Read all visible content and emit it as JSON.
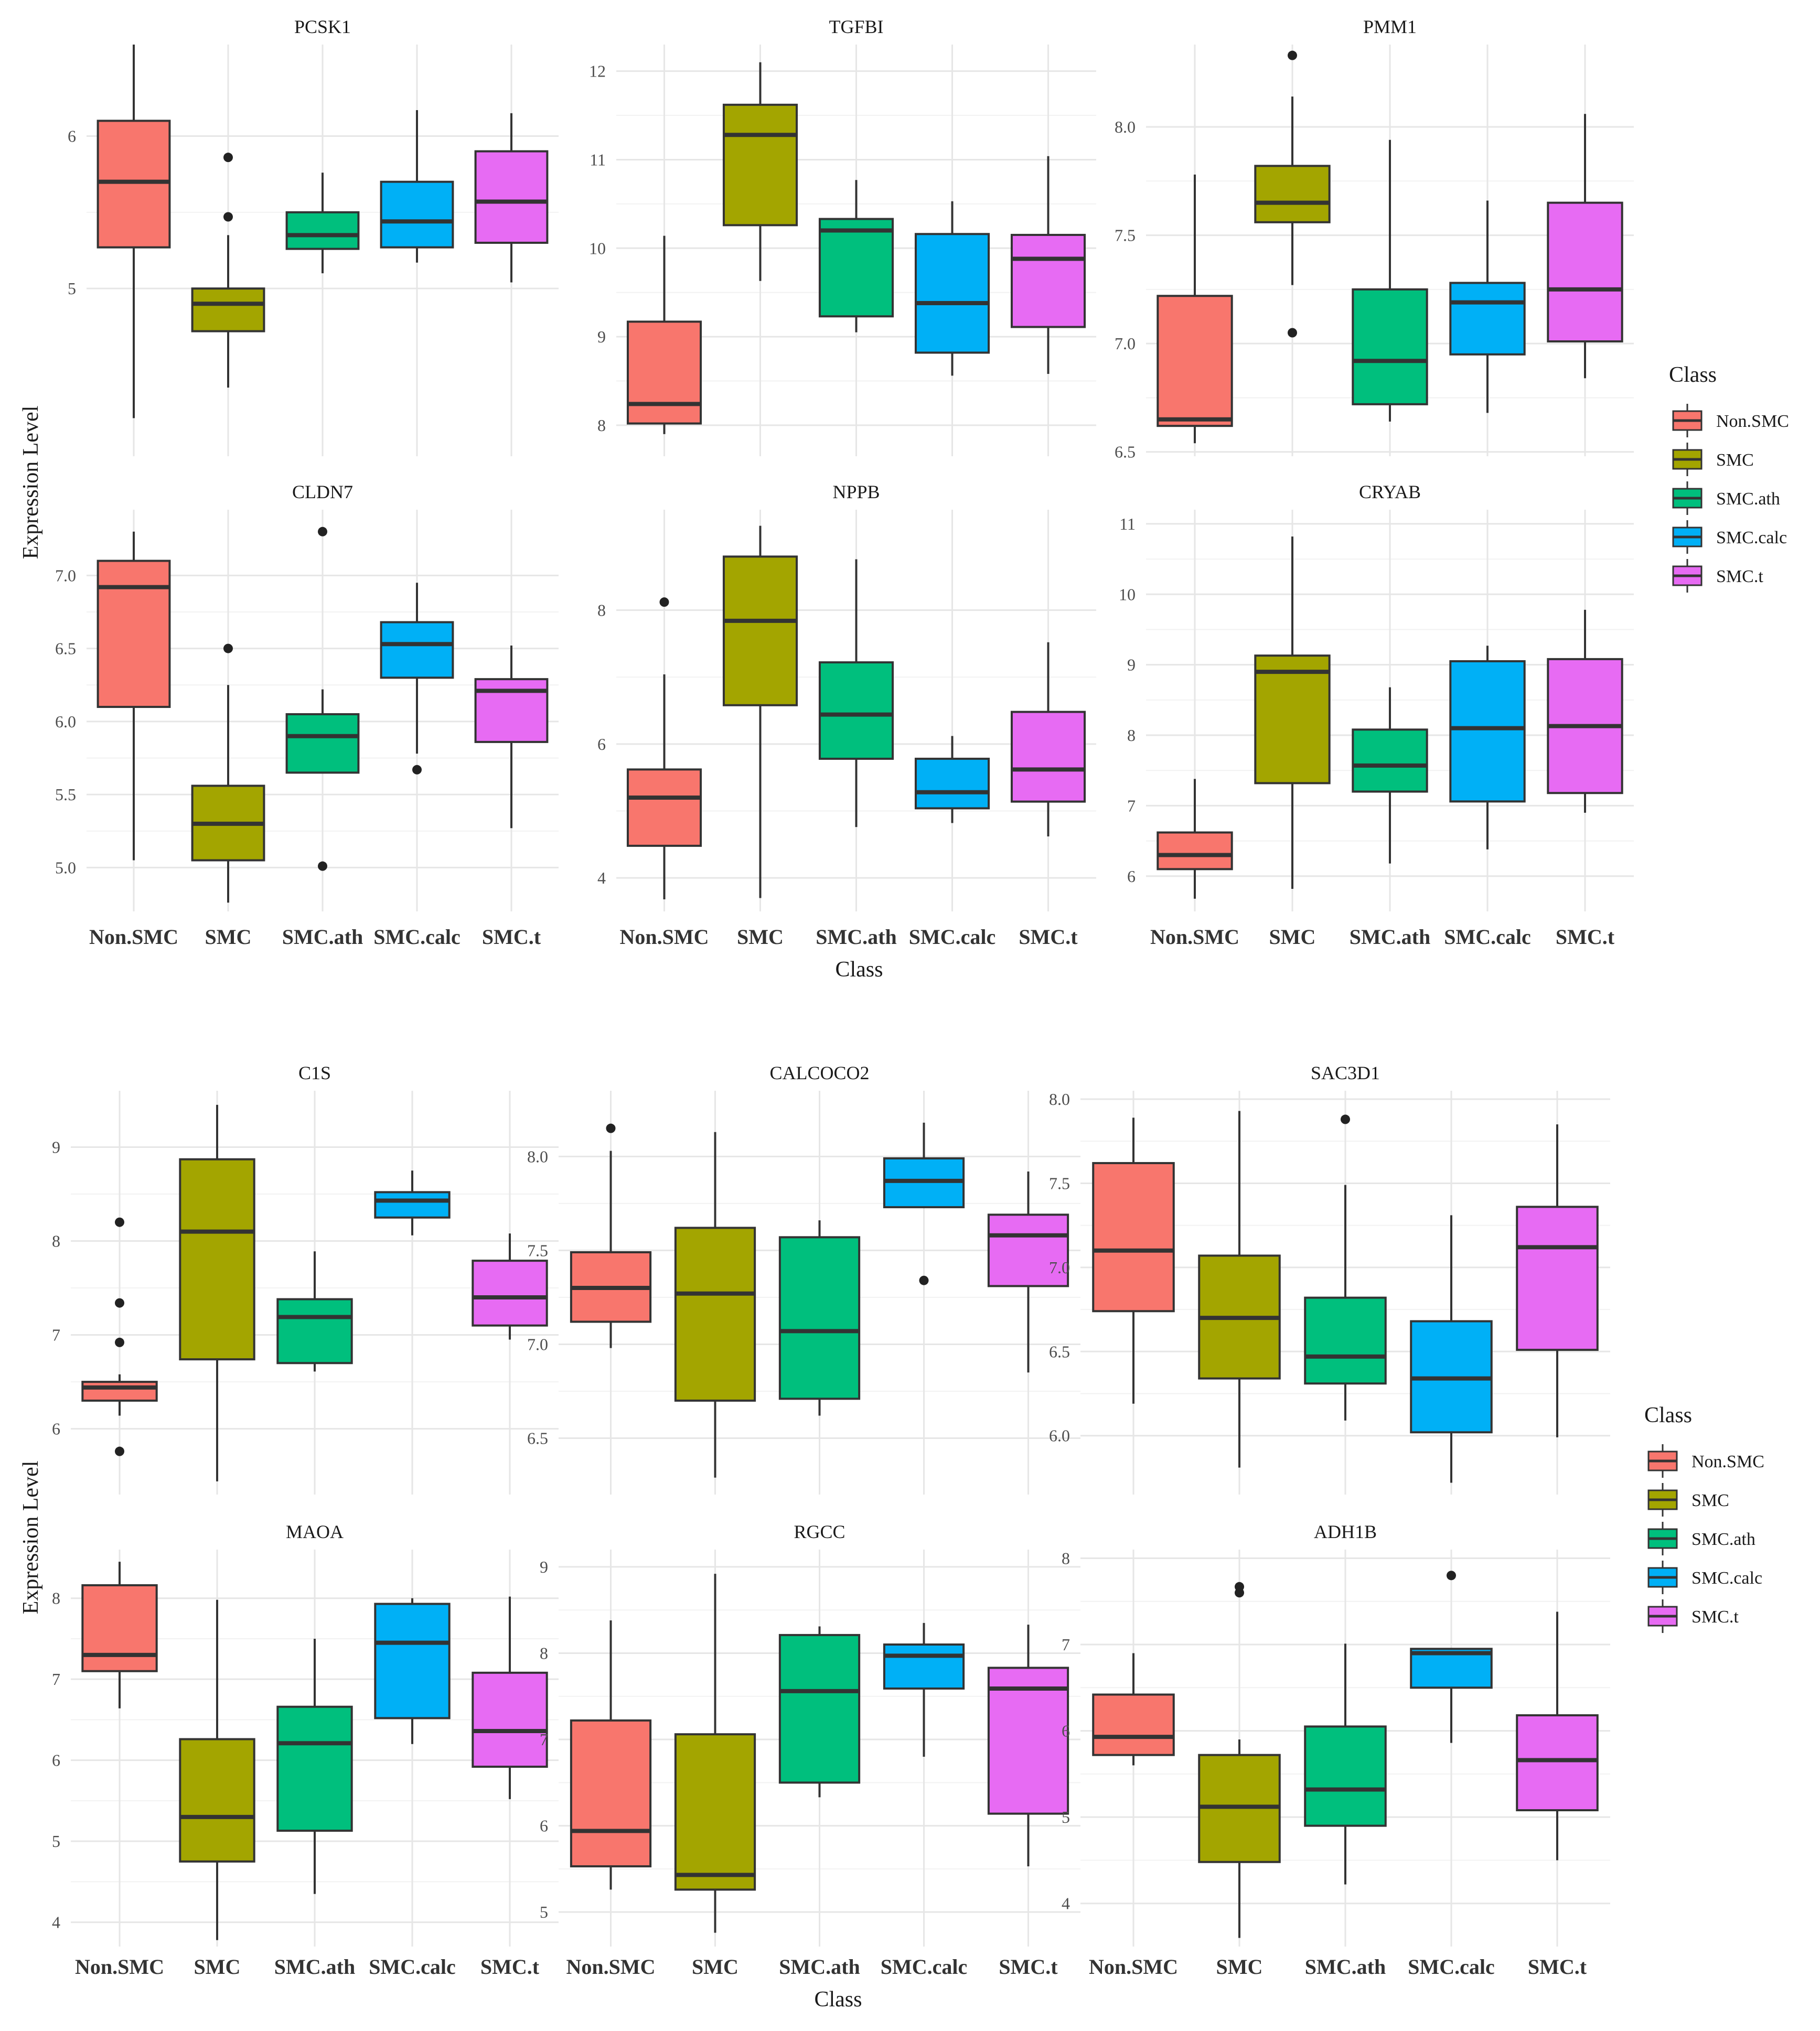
{
  "colors": {
    "Non.SMC": "#F8766D",
    "SMC": "#A3A500",
    "SMC.ath": "#00BF7D",
    "SMC.calc": "#00B0F6",
    "SMC.t": "#E76BF3",
    "grid": "#ebebeb",
    "outline": "#333333"
  },
  "chart_data": [
    {
      "figure": "top",
      "type": "boxplot",
      "xlabel": "Class",
      "ylabel": "Expression Level",
      "categories": [
        "Non.SMC",
        "SMC",
        "SMC.ath",
        "SMC.calc",
        "SMC.t"
      ],
      "legend": {
        "title": "Class",
        "entries": [
          "Non.SMC",
          "SMC",
          "SMC.ath",
          "SMC.calc",
          "SMC.t"
        ],
        "placement": "right"
      },
      "panels": [
        {
          "title": "PCSK1",
          "ylim": [
            3.9,
            6.6
          ],
          "yticks": [
            "5",
            "6"
          ],
          "boxes": [
            {
              "min": 4.15,
              "q1": 5.27,
              "median": 5.7,
              "q3": 6.1,
              "max": 6.6,
              "outliers": []
            },
            {
              "min": 4.35,
              "q1": 4.72,
              "median": 4.9,
              "q3": 5.0,
              "max": 5.35,
              "outliers": [
                5.47,
                5.86
              ]
            },
            {
              "min": 5.1,
              "q1": 5.26,
              "median": 5.35,
              "q3": 5.5,
              "max": 5.76,
              "outliers": []
            },
            {
              "min": 5.17,
              "q1": 5.27,
              "median": 5.44,
              "q3": 5.7,
              "max": 6.17,
              "outliers": []
            },
            {
              "min": 5.04,
              "q1": 5.3,
              "median": 5.57,
              "q3": 5.9,
              "max": 6.15,
              "outliers": []
            }
          ]
        },
        {
          "title": "TGFBI",
          "ylim": [
            7.65,
            12.3
          ],
          "yticks": [
            "8",
            "9",
            "10",
            "11",
            "12"
          ],
          "boxes": [
            {
              "min": 7.9,
              "q1": 8.02,
              "median": 8.24,
              "q3": 9.17,
              "max": 10.14,
              "outliers": []
            },
            {
              "min": 9.63,
              "q1": 10.26,
              "median": 11.28,
              "q3": 11.62,
              "max": 12.1,
              "outliers": []
            },
            {
              "min": 9.05,
              "q1": 9.23,
              "median": 10.2,
              "q3": 10.33,
              "max": 10.77,
              "outliers": []
            },
            {
              "min": 8.56,
              "q1": 8.82,
              "median": 9.38,
              "q3": 10.16,
              "max": 10.53,
              "outliers": []
            },
            {
              "min": 8.58,
              "q1": 9.11,
              "median": 9.88,
              "q3": 10.15,
              "max": 11.04,
              "outliers": []
            }
          ]
        },
        {
          "title": "PMM1",
          "ylim": [
            6.48,
            8.38
          ],
          "yticks": [
            "6.5",
            "7.0",
            "7.5",
            "8.0"
          ],
          "boxes": [
            {
              "min": 6.54,
              "q1": 6.62,
              "median": 6.65,
              "q3": 7.22,
              "max": 7.78,
              "outliers": []
            },
            {
              "min": 7.27,
              "q1": 7.56,
              "median": 7.65,
              "q3": 7.82,
              "max": 8.14,
              "outliers": [
                7.05,
                8.33
              ]
            },
            {
              "min": 6.64,
              "q1": 6.72,
              "median": 6.92,
              "q3": 7.25,
              "max": 7.94,
              "outliers": []
            },
            {
              "min": 6.68,
              "q1": 6.95,
              "median": 7.19,
              "q3": 7.28,
              "max": 7.66,
              "outliers": []
            },
            {
              "min": 6.84,
              "q1": 7.01,
              "median": 7.25,
              "q3": 7.65,
              "max": 8.06,
              "outliers": []
            }
          ]
        },
        {
          "title": "CLDN7",
          "ylim": [
            4.7,
            7.45
          ],
          "yticks": [
            "5.0",
            "5.5",
            "6.0",
            "6.5",
            "7.0"
          ],
          "boxes": [
            {
              "min": 5.05,
              "q1": 6.1,
              "median": 6.92,
              "q3": 7.1,
              "max": 7.3,
              "outliers": []
            },
            {
              "min": 4.76,
              "q1": 5.05,
              "median": 5.3,
              "q3": 5.56,
              "max": 6.25,
              "outliers": [
                6.5
              ]
            },
            {
              "min": 5.65,
              "q1": 5.65,
              "median": 5.9,
              "q3": 6.05,
              "max": 6.22,
              "outliers": [
                5.01,
                7.3
              ]
            },
            {
              "min": 5.78,
              "q1": 6.3,
              "median": 6.53,
              "q3": 6.68,
              "max": 6.95,
              "outliers": [
                5.67
              ]
            },
            {
              "min": 5.27,
              "q1": 5.86,
              "median": 6.21,
              "q3": 6.29,
              "max": 6.52,
              "outliers": []
            }
          ]
        },
        {
          "title": "NPPB",
          "ylim": [
            3.5,
            9.5
          ],
          "yticks": [
            "4",
            "6",
            "8"
          ],
          "boxes": [
            {
              "min": 3.68,
              "q1": 4.48,
              "median": 5.2,
              "q3": 5.62,
              "max": 7.04,
              "outliers": [
                8.12
              ]
            },
            {
              "min": 3.7,
              "q1": 6.58,
              "median": 7.84,
              "q3": 8.8,
              "max": 9.26,
              "outliers": []
            },
            {
              "min": 4.76,
              "q1": 5.78,
              "median": 6.44,
              "q3": 7.22,
              "max": 8.76,
              "outliers": []
            },
            {
              "min": 4.82,
              "q1": 5.04,
              "median": 5.28,
              "q3": 5.78,
              "max": 6.12,
              "outliers": []
            },
            {
              "min": 4.62,
              "q1": 5.14,
              "median": 5.62,
              "q3": 6.48,
              "max": 7.52,
              "outliers": []
            }
          ]
        },
        {
          "title": "CRYAB",
          "ylim": [
            5.5,
            11.2
          ],
          "yticks": [
            "6",
            "7",
            "8",
            "9",
            "10",
            "11"
          ],
          "boxes": [
            {
              "min": 5.68,
              "q1": 6.1,
              "median": 6.3,
              "q3": 6.62,
              "max": 7.38,
              "outliers": []
            },
            {
              "min": 5.82,
              "q1": 7.32,
              "median": 8.9,
              "q3": 9.13,
              "max": 10.82,
              "outliers": []
            },
            {
              "min": 6.18,
              "q1": 7.2,
              "median": 7.57,
              "q3": 8.08,
              "max": 8.68,
              "outliers": []
            },
            {
              "min": 6.38,
              "q1": 7.06,
              "median": 8.1,
              "q3": 9.05,
              "max": 9.27,
              "outliers": []
            },
            {
              "min": 6.9,
              "q1": 7.18,
              "median": 8.13,
              "q3": 9.08,
              "max": 9.78,
              "outliers": []
            }
          ]
        }
      ]
    },
    {
      "figure": "bottom",
      "type": "boxplot",
      "xlabel": "Class",
      "ylabel": "Expression Level",
      "categories": [
        "Non.SMC",
        "SMC",
        "SMC.ath",
        "SMC.calc",
        "SMC.t"
      ],
      "legend": {
        "title": "Class",
        "entries": [
          "Non.SMC",
          "SMC",
          "SMC.ath",
          "SMC.calc",
          "SMC.t"
        ],
        "placement": "right"
      },
      "panels": [
        {
          "title": "C1S",
          "ylim": [
            5.3,
            9.6
          ],
          "yticks": [
            "6",
            "7",
            "8",
            "9"
          ],
          "boxes": [
            {
              "min": 6.14,
              "q1": 6.3,
              "median": 6.44,
              "q3": 6.5,
              "max": 6.58,
              "outliers": [
                5.76,
                6.92,
                7.34,
                8.2
              ]
            },
            {
              "min": 5.44,
              "q1": 6.74,
              "median": 8.1,
              "q3": 8.87,
              "max": 9.45,
              "outliers": []
            },
            {
              "min": 6.61,
              "q1": 6.7,
              "median": 7.19,
              "q3": 7.38,
              "max": 7.89,
              "outliers": []
            },
            {
              "min": 8.06,
              "q1": 8.25,
              "median": 8.43,
              "q3": 8.52,
              "max": 8.75,
              "outliers": []
            },
            {
              "min": 6.95,
              "q1": 7.1,
              "median": 7.4,
              "q3": 7.79,
              "max": 8.08,
              "outliers": []
            }
          ]
        },
        {
          "title": "CALCOCO2",
          "ylim": [
            6.2,
            8.35
          ],
          "yticks": [
            "6.5",
            "7.0",
            "7.5",
            "8.0"
          ],
          "boxes": [
            {
              "min": 6.98,
              "q1": 7.12,
              "median": 7.3,
              "q3": 7.49,
              "max": 8.03,
              "outliers": [
                8.15
              ]
            },
            {
              "min": 6.29,
              "q1": 6.7,
              "median": 7.27,
              "q3": 7.62,
              "max": 8.13,
              "outliers": []
            },
            {
              "min": 6.62,
              "q1": 6.71,
              "median": 7.07,
              "q3": 7.57,
              "max": 7.66,
              "outliers": []
            },
            {
              "min": 7.73,
              "q1": 7.73,
              "median": 7.87,
              "q3": 7.99,
              "max": 8.18,
              "outliers": [
                7.34
              ]
            },
            {
              "min": 6.85,
              "q1": 7.31,
              "median": 7.58,
              "q3": 7.69,
              "max": 7.92,
              "outliers": []
            }
          ]
        },
        {
          "title": "SAC3D1",
          "ylim": [
            5.65,
            8.05
          ],
          "yticks": [
            "6.0",
            "6.5",
            "7.0",
            "7.5",
            "8.0"
          ],
          "boxes": [
            {
              "min": 6.19,
              "q1": 6.74,
              "median": 7.1,
              "q3": 7.62,
              "max": 7.89,
              "outliers": []
            },
            {
              "min": 5.81,
              "q1": 6.34,
              "median": 6.7,
              "q3": 7.07,
              "max": 7.93,
              "outliers": []
            },
            {
              "min": 6.09,
              "q1": 6.31,
              "median": 6.47,
              "q3": 6.82,
              "max": 7.49,
              "outliers": [
                7.88
              ]
            },
            {
              "min": 5.72,
              "q1": 6.02,
              "median": 6.34,
              "q3": 6.68,
              "max": 7.31,
              "outliers": []
            },
            {
              "min": 5.99,
              "q1": 6.51,
              "median": 7.12,
              "q3": 7.36,
              "max": 7.85,
              "outliers": []
            }
          ]
        },
        {
          "title": "MAOA",
          "ylim": [
            3.7,
            8.6
          ],
          "yticks": [
            "4",
            "5",
            "6",
            "7",
            "8"
          ],
          "boxes": [
            {
              "min": 6.64,
              "q1": 7.1,
              "median": 7.3,
              "q3": 8.16,
              "max": 8.45,
              "outliers": []
            },
            {
              "min": 3.78,
              "q1": 4.75,
              "median": 5.3,
              "q3": 6.26,
              "max": 7.98,
              "outliers": []
            },
            {
              "min": 4.35,
              "q1": 5.13,
              "median": 6.21,
              "q3": 6.66,
              "max": 7.5,
              "outliers": []
            },
            {
              "min": 6.2,
              "q1": 6.52,
              "median": 7.45,
              "q3": 7.93,
              "max": 8.0,
              "outliers": []
            },
            {
              "min": 5.52,
              "q1": 5.92,
              "median": 6.36,
              "q3": 7.08,
              "max": 8.02,
              "outliers": []
            }
          ]
        },
        {
          "title": "RGCC",
          "ylim": [
            4.6,
            9.2
          ],
          "yticks": [
            "5",
            "6",
            "7",
            "8",
            "9"
          ],
          "boxes": [
            {
              "min": 5.26,
              "q1": 5.53,
              "median": 5.94,
              "q3": 7.22,
              "max": 8.38,
              "outliers": []
            },
            {
              "min": 4.76,
              "q1": 5.26,
              "median": 5.43,
              "q3": 7.06,
              "max": 8.92,
              "outliers": []
            },
            {
              "min": 6.33,
              "q1": 6.5,
              "median": 7.56,
              "q3": 8.21,
              "max": 8.31,
              "outliers": []
            },
            {
              "min": 6.8,
              "q1": 7.59,
              "median": 7.97,
              "q3": 8.1,
              "max": 8.35,
              "outliers": []
            },
            {
              "min": 5.53,
              "q1": 6.14,
              "median": 7.59,
              "q3": 7.83,
              "max": 8.33,
              "outliers": []
            }
          ]
        },
        {
          "title": "ADH1B",
          "ylim": [
            3.5,
            8.1
          ],
          "yticks": [
            "4",
            "5",
            "6",
            "7",
            "8"
          ],
          "boxes": [
            {
              "min": 5.6,
              "q1": 5.72,
              "median": 5.93,
              "q3": 6.42,
              "max": 6.9,
              "outliers": []
            },
            {
              "min": 3.6,
              "q1": 4.48,
              "median": 5.12,
              "q3": 5.72,
              "max": 5.9,
              "outliers": [
                7.6,
                7.67
              ]
            },
            {
              "min": 4.22,
              "q1": 4.9,
              "median": 5.32,
              "q3": 6.05,
              "max": 7.01,
              "outliers": []
            },
            {
              "min": 5.86,
              "q1": 6.5,
              "median": 6.9,
              "q3": 6.95,
              "max": 6.95,
              "outliers": [
                7.8
              ]
            },
            {
              "min": 4.5,
              "q1": 5.08,
              "median": 5.66,
              "q3": 6.18,
              "max": 7.38,
              "outliers": []
            }
          ]
        }
      ]
    }
  ]
}
